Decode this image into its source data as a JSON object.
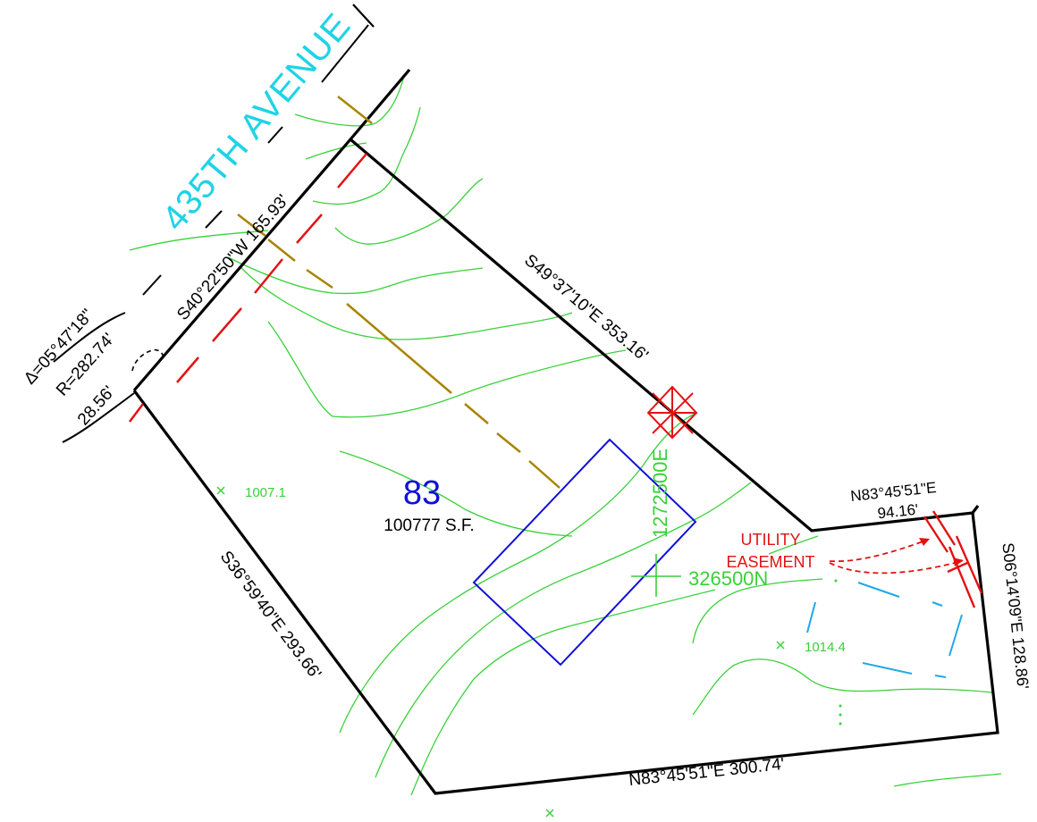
{
  "street": {
    "name": "435TH AVENUE"
  },
  "curve": {
    "delta": "Δ=05°47'18\"",
    "radius": "R=282.74'",
    "arc": "28.56'"
  },
  "lot": {
    "number": "83",
    "area": "100777 S.F."
  },
  "bearings": {
    "nw_frontage": "S40°22'50\"W 165.93'",
    "ne": "S49°37'10\"E 353.16'",
    "sw": "S36°59'40\"E 293.66'",
    "south": "N83°45'51\"E 300.74'",
    "jog_bearing": "N83°45'51\"E",
    "jog_distance": "94.16'",
    "east": "S06°14'09\"E 128.86'"
  },
  "easement": {
    "line1": "UTILITY",
    "line2": "EASEMENT"
  },
  "spot_elevations": [
    "1007.1",
    "1014.4"
  ],
  "grid_labels": {
    "easting": "1272500E",
    "northing": "326500N"
  },
  "colors": {
    "boundary": "#000000",
    "contour": "#39d139",
    "street": "#1fd3e6",
    "easement": "#e31212",
    "building": "#1010d8",
    "lot_number": "#1010d8",
    "utility": "#a88400",
    "drainage": "#1fa8e8"
  }
}
